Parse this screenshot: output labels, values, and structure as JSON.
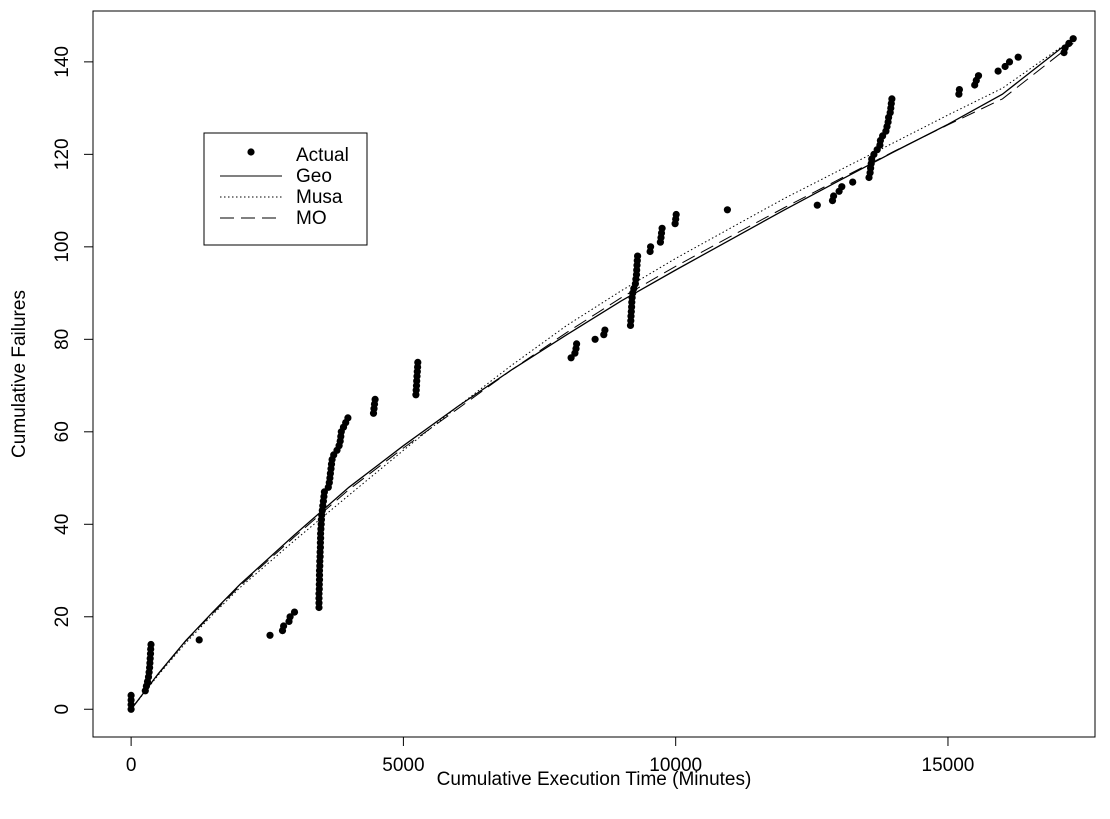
{
  "chart_data": {
    "type": "scatter",
    "title": "",
    "xlabel": "Cumulative Execution Time (Minutes)",
    "ylabel": "Cumulative Failures",
    "xlim": [
      -700,
      17700
    ],
    "ylim": [
      -6,
      151
    ],
    "xticks": [
      0,
      5000,
      10000,
      15000
    ],
    "yticks": [
      0,
      20,
      40,
      60,
      80,
      100,
      120,
      140
    ],
    "legend": {
      "position": "top-left",
      "entries": [
        {
          "label": "Actual",
          "style": "point"
        },
        {
          "label": "Geo",
          "style": "solid"
        },
        {
          "label": "Musa",
          "style": "dotted"
        },
        {
          "label": "MO",
          "style": "dashed"
        }
      ]
    },
    "grid": false,
    "series": [
      {
        "name": "Actual",
        "kind": "points",
        "points": [
          [
            0,
            0
          ],
          [
            0,
            1
          ],
          [
            0,
            2
          ],
          [
            0,
            3
          ],
          [
            260,
            4
          ],
          [
            280,
            5
          ],
          [
            300,
            6
          ],
          [
            320,
            7
          ],
          [
            330,
            8
          ],
          [
            340,
            9
          ],
          [
            345,
            10
          ],
          [
            350,
            11
          ],
          [
            355,
            12
          ],
          [
            360,
            13
          ],
          [
            365,
            14
          ],
          [
            1250,
            15
          ],
          [
            2550,
            16
          ],
          [
            2780,
            17
          ],
          [
            2800,
            18
          ],
          [
            2900,
            19
          ],
          [
            2920,
            20
          ],
          [
            3000,
            21
          ],
          [
            3450,
            22
          ],
          [
            3450,
            23
          ],
          [
            3450,
            24
          ],
          [
            3450,
            25
          ],
          [
            3455,
            26
          ],
          [
            3455,
            27
          ],
          [
            3460,
            28
          ],
          [
            3460,
            29
          ],
          [
            3460,
            30
          ],
          [
            3465,
            31
          ],
          [
            3465,
            32
          ],
          [
            3470,
            33
          ],
          [
            3470,
            34
          ],
          [
            3475,
            35
          ],
          [
            3475,
            36
          ],
          [
            3480,
            37
          ],
          [
            3480,
            38
          ],
          [
            3485,
            39
          ],
          [
            3490,
            40
          ],
          [
            3495,
            41
          ],
          [
            3500,
            42
          ],
          [
            3510,
            43
          ],
          [
            3520,
            44
          ],
          [
            3530,
            45
          ],
          [
            3540,
            46
          ],
          [
            3550,
            47
          ],
          [
            3620,
            48
          ],
          [
            3640,
            49
          ],
          [
            3650,
            50
          ],
          [
            3660,
            51
          ],
          [
            3670,
            52
          ],
          [
            3680,
            53
          ],
          [
            3690,
            54
          ],
          [
            3720,
            55
          ],
          [
            3780,
            56
          ],
          [
            3820,
            57
          ],
          [
            3840,
            58
          ],
          [
            3850,
            59
          ],
          [
            3860,
            60
          ],
          [
            3900,
            61
          ],
          [
            3940,
            62
          ],
          [
            3980,
            63
          ],
          [
            4450,
            64
          ],
          [
            4460,
            65
          ],
          [
            4470,
            66
          ],
          [
            4480,
            67
          ],
          [
            5230,
            68
          ],
          [
            5235,
            69
          ],
          [
            5240,
            70
          ],
          [
            5245,
            71
          ],
          [
            5250,
            72
          ],
          [
            5255,
            73
          ],
          [
            5260,
            74
          ],
          [
            5265,
            75
          ],
          [
            8080,
            76
          ],
          [
            8150,
            77
          ],
          [
            8170,
            78
          ],
          [
            8180,
            79
          ],
          [
            8520,
            80
          ],
          [
            8680,
            81
          ],
          [
            8700,
            82
          ],
          [
            9170,
            83
          ],
          [
            9175,
            84
          ],
          [
            9180,
            85
          ],
          [
            9185,
            86
          ],
          [
            9190,
            87
          ],
          [
            9195,
            88
          ],
          [
            9200,
            89
          ],
          [
            9210,
            90
          ],
          [
            9230,
            91
          ],
          [
            9260,
            92
          ],
          [
            9270,
            93
          ],
          [
            9280,
            94
          ],
          [
            9285,
            95
          ],
          [
            9290,
            96
          ],
          [
            9295,
            97
          ],
          [
            9300,
            98
          ],
          [
            9530,
            99
          ],
          [
            9540,
            100
          ],
          [
            9720,
            101
          ],
          [
            9730,
            102
          ],
          [
            9740,
            103
          ],
          [
            9750,
            104
          ],
          [
            9990,
            105
          ],
          [
            10000,
            106
          ],
          [
            10010,
            107
          ],
          [
            10950,
            108
          ],
          [
            12600,
            109
          ],
          [
            12880,
            110
          ],
          [
            12900,
            111
          ],
          [
            13000,
            112
          ],
          [
            13050,
            113
          ],
          [
            13250,
            114
          ],
          [
            13550,
            115
          ],
          [
            13570,
            116
          ],
          [
            13580,
            117
          ],
          [
            13590,
            118
          ],
          [
            13600,
            119
          ],
          [
            13640,
            120
          ],
          [
            13700,
            121
          ],
          [
            13750,
            122
          ],
          [
            13760,
            123
          ],
          [
            13800,
            124
          ],
          [
            13860,
            125
          ],
          [
            13880,
            126
          ],
          [
            13900,
            127
          ],
          [
            13910,
            128
          ],
          [
            13940,
            129
          ],
          [
            13950,
            130
          ],
          [
            13960,
            131
          ],
          [
            13970,
            132
          ],
          [
            15200,
            133
          ],
          [
            15210,
            134
          ],
          [
            15490,
            135
          ],
          [
            15520,
            136
          ],
          [
            15560,
            137
          ],
          [
            15920,
            138
          ],
          [
            16050,
            139
          ],
          [
            16130,
            140
          ],
          [
            16290,
            141
          ],
          [
            17130,
            142
          ],
          [
            17150,
            143
          ],
          [
            17220,
            144
          ],
          [
            17300,
            145
          ]
        ]
      },
      {
        "name": "Geo",
        "kind": "line",
        "style": "solid",
        "x": [
          0,
          500,
          1000,
          1500,
          2000,
          3000,
          4000,
          5000,
          6000,
          7000,
          8000,
          9000,
          10000,
          11000,
          12000,
          13000,
          14000,
          15000,
          16000,
          17300
        ],
        "y": [
          0,
          7.7,
          14.8,
          21,
          27,
          37.7,
          48,
          57,
          65.5,
          73.5,
          81,
          88.3,
          95,
          101.5,
          108,
          114.3,
          120.5,
          126.5,
          133,
          145
        ]
      },
      {
        "name": "Musa",
        "kind": "line",
        "style": "dotted",
        "x": [
          0,
          500,
          1000,
          1500,
          2000,
          3000,
          4000,
          5000,
          6000,
          7000,
          8000,
          9000,
          10000,
          11000,
          12000,
          13000,
          14000,
          15000,
          16000,
          17300
        ],
        "y": [
          0,
          7.4,
          14.3,
          20.5,
          26.3,
          36.5,
          46.3,
          56,
          65.5,
          74.5,
          83,
          90.5,
          97.5,
          104,
          110.5,
          116.5,
          122.5,
          128.5,
          134.3,
          145
        ]
      },
      {
        "name": "MO",
        "kind": "line",
        "style": "dashed",
        "x": [
          0,
          500,
          1000,
          1500,
          2000,
          3000,
          4000,
          5000,
          6000,
          7000,
          8000,
          9000,
          10000,
          11000,
          12000,
          13000,
          14000,
          15000,
          16000,
          17300
        ],
        "y": [
          0,
          7.6,
          14.7,
          20.8,
          26.7,
          37.3,
          47.5,
          56.5,
          65,
          73.5,
          81.5,
          89,
          95.8,
          102.2,
          108.5,
          114.6,
          120.6,
          126.4,
          132,
          144
        ]
      }
    ]
  }
}
